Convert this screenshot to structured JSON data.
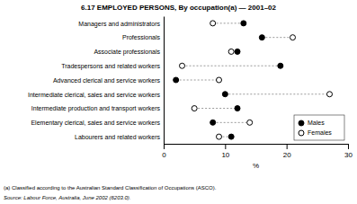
{
  "chart_data": {
    "type": "dumbbell",
    "title": "6.17   EMPLOYED PERSONS, By occupation(a) — 2001–02",
    "categories": [
      "Managers and administrators",
      "Professionals",
      "Associate professionals",
      "Tradespersons and related workers",
      "Advanced clerical and service workers",
      "Intermediate clerical, sales and service workers",
      "Intermediate production and transport workers",
      "Elementary clerical, sales and service workers",
      "Labourers and related workers"
    ],
    "series": [
      {
        "name": "Males",
        "color": "#000000",
        "values": [
          13,
          16,
          12,
          19,
          2,
          10,
          12,
          8,
          11
        ]
      },
      {
        "name": "Females",
        "color": "#ffffff",
        "values": [
          8,
          21,
          11,
          3,
          9,
          27,
          5,
          14,
          9
        ]
      }
    ],
    "xlabel": "%",
    "xlim": [
      0,
      30
    ],
    "xticks": [
      0,
      10,
      20,
      30
    ],
    "annotations": [
      "(a) Classified according to the Australian Standard Classification of Occupations (ASCO).",
      "Source:  Labour Force, Australia, June 2002 (6203.0)."
    ],
    "legend": "lower right",
    "grid": false
  }
}
